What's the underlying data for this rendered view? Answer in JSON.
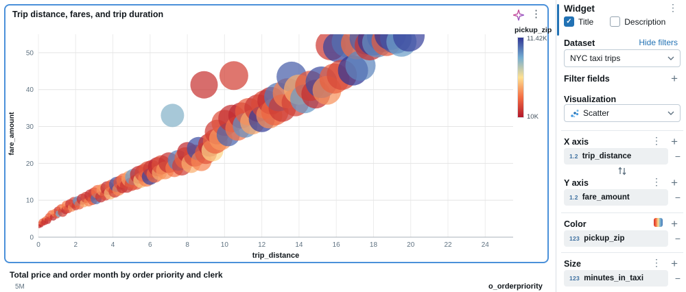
{
  "chart_widget": {
    "title": "Trip distance, fares, and trip duration",
    "legend": {
      "title": "pickup_zip",
      "max_label": "11.42K",
      "min_label": "10K"
    }
  },
  "bottom_widget": {
    "title": "Total price and order month by order priority and clerk",
    "y_tick": "5M",
    "legend_title": "o_orderpriority"
  },
  "panel": {
    "header": "Widget",
    "title_checkbox": "Title",
    "description_checkbox": "Description",
    "dataset_label": "Dataset",
    "hide_filters": "Hide filters",
    "dataset_value": "NYC taxi trips",
    "filter_fields_label": "Filter fields",
    "visualization_label": "Visualization",
    "visualization_value": "Scatter",
    "x_axis": {
      "label": "X axis",
      "field": "trip_distance",
      "type_icon": "1.2"
    },
    "y_axis": {
      "label": "Y axis",
      "field": "fare_amount",
      "type_icon": "1.2"
    },
    "color": {
      "label": "Color",
      "field": "pickup_zip",
      "type_icon": "123"
    },
    "size": {
      "label": "Size",
      "field": "minutes_in_taxi",
      "type_icon": "123"
    }
  },
  "icons": {
    "kebab": "⋮",
    "plus": "+",
    "minus": "−",
    "check": "✓"
  },
  "colors": {
    "accent": "#2272b4",
    "selection_border": "#4a90d9"
  },
  "chart_data": {
    "type": "scatter",
    "xlabel": "trip_distance",
    "ylabel": "fare_amount",
    "xlim": [
      0,
      25.5
    ],
    "ylim": [
      0,
      55
    ],
    "x_ticks": [
      0,
      2,
      4,
      6,
      8,
      10,
      12,
      14,
      16,
      18,
      20,
      22,
      24
    ],
    "y_ticks": [
      0,
      10,
      20,
      30,
      40,
      50
    ],
    "color_scale": {
      "field": "pickup_zip",
      "min": 10000,
      "max": 11420,
      "min_label": "10K",
      "max_label": "11.42K",
      "stops": [
        [
          0,
          "#b2182b"
        ],
        [
          0.25,
          "#f46d43"
        ],
        [
          0.5,
          "#fee090"
        ],
        [
          0.75,
          "#74add1"
        ],
        [
          1,
          "#313695"
        ]
      ]
    },
    "points": [
      [
        0.05,
        3.0,
        3,
        10100
      ],
      [
        0.1,
        3.6,
        4,
        10210
      ],
      [
        0.15,
        3.2,
        3,
        10060
      ],
      [
        0.2,
        4.1,
        5,
        10330
      ],
      [
        0.25,
        3.8,
        4,
        10150
      ],
      [
        0.3,
        4.6,
        4,
        10280
      ],
      [
        0.35,
        4.2,
        5,
        10120
      ],
      [
        0.4,
        5.0,
        4,
        10400
      ],
      [
        0.5,
        4.5,
        5,
        10090
      ],
      [
        0.55,
        5.6,
        5,
        10260
      ],
      [
        0.6,
        5.0,
        4,
        10180
      ],
      [
        0.7,
        6.2,
        6,
        10350
      ],
      [
        0.8,
        5.4,
        5,
        10070
      ],
      [
        0.9,
        6.6,
        6,
        10440
      ],
      [
        1.0,
        6.0,
        5,
        10230
      ],
      [
        1.05,
        7.2,
        6,
        10130
      ],
      [
        1.1,
        6.4,
        5,
        11050
      ],
      [
        1.2,
        7.8,
        6,
        10300
      ],
      [
        1.3,
        6.8,
        7,
        10170
      ],
      [
        1.35,
        8.1,
        5,
        10520
      ],
      [
        1.45,
        7.4,
        6,
        10080
      ],
      [
        1.5,
        8.6,
        7,
        10390
      ],
      [
        1.6,
        7.6,
        6,
        10240
      ],
      [
        1.7,
        9.0,
        7,
        10110
      ],
      [
        1.8,
        8.0,
        6,
        10460
      ],
      [
        1.9,
        9.4,
        8,
        10200
      ],
      [
        2.0,
        8.4,
        6,
        10140
      ],
      [
        2.1,
        9.8,
        7,
        11150
      ],
      [
        2.2,
        8.8,
        7,
        10320
      ],
      [
        2.35,
        10.3,
        8,
        10090
      ],
      [
        2.45,
        9.2,
        6,
        10550
      ],
      [
        2.55,
        10.8,
        8,
        10180
      ],
      [
        2.7,
        9.6,
        7,
        10420
      ],
      [
        2.8,
        11.3,
        9,
        10100
      ],
      [
        2.9,
        10.0,
        7,
        10270
      ],
      [
        3.0,
        11.8,
        9,
        10150
      ],
      [
        3.1,
        10.4,
        8,
        11250
      ],
      [
        3.2,
        12.3,
        10,
        10360
      ],
      [
        3.35,
        10.9,
        8,
        10120
      ],
      [
        3.45,
        12.8,
        9,
        10490
      ],
      [
        3.6,
        11.4,
        8,
        10210
      ],
      [
        3.7,
        13.3,
        10,
        10080
      ],
      [
        3.85,
        11.9,
        9,
        10580
      ],
      [
        3.95,
        13.8,
        10,
        10300
      ],
      [
        4.1,
        12.4,
        9,
        10160
      ],
      [
        4.2,
        14.3,
        11,
        11320
      ],
      [
        4.3,
        12.9,
        9,
        10440
      ],
      [
        4.4,
        14.8,
        10,
        10230
      ],
      [
        4.5,
        13.4,
        8,
        10100
      ],
      [
        4.6,
        15.3,
        11,
        10350
      ],
      [
        4.75,
        13.9,
        10,
        10130
      ],
      [
        4.9,
        15.8,
        12,
        10500
      ],
      [
        5.0,
        14.4,
        10,
        10200
      ],
      [
        5.1,
        16.3,
        12,
        11100
      ],
      [
        5.25,
        14.9,
        11,
        10280
      ],
      [
        5.4,
        16.9,
        13,
        10090
      ],
      [
        5.5,
        15.4,
        11,
        10620
      ],
      [
        5.65,
        17.4,
        13,
        10170
      ],
      [
        5.8,
        15.9,
        12,
        10410
      ],
      [
        5.9,
        18.0,
        14,
        10250
      ],
      [
        6.0,
        16.4,
        12,
        11380
      ],
      [
        6.1,
        18.5,
        13,
        10140
      ],
      [
        6.25,
        17.0,
        12,
        10330
      ],
      [
        6.4,
        19.1,
        14,
        10060
      ],
      [
        6.5,
        17.5,
        11,
        10540
      ],
      [
        6.6,
        19.6,
        14,
        10220
      ],
      [
        6.8,
        18.1,
        13,
        10470
      ],
      [
        7.0,
        20.2,
        15,
        10110
      ],
      [
        7.2,
        33.0,
        17,
        11020
      ],
      [
        7.3,
        18.7,
        13,
        10390
      ],
      [
        7.5,
        20.8,
        15,
        11200
      ],
      [
        7.7,
        19.3,
        14,
        10160
      ],
      [
        7.9,
        21.4,
        16,
        10300
      ],
      [
        8.0,
        23.0,
        15,
        10080
      ],
      [
        8.2,
        20.0,
        14,
        10560
      ],
      [
        8.4,
        22.1,
        16,
        10190
      ],
      [
        8.6,
        24.0,
        17,
        11340
      ],
      [
        8.75,
        20.7,
        15,
        10430
      ],
      [
        8.9,
        41.3,
        20,
        10120
      ],
      [
        9.0,
        22.8,
        16,
        10260
      ],
      [
        9.2,
        25.0,
        17,
        10090
      ],
      [
        9.35,
        23.5,
        16,
        10680
      ],
      [
        9.5,
        26.0,
        18,
        10310
      ],
      [
        9.6,
        28.5,
        18,
        10150
      ],
      [
        9.8,
        26.7,
        17,
        10490
      ],
      [
        10.0,
        31.0,
        19,
        10240
      ],
      [
        10.2,
        27.8,
        17,
        11280
      ],
      [
        10.4,
        32.2,
        20,
        10100
      ],
      [
        10.5,
        43.8,
        21,
        10170
      ],
      [
        10.7,
        29.5,
        18,
        10380
      ],
      [
        10.9,
        33.0,
        19,
        10070
      ],
      [
        11.1,
        30.3,
        18,
        11150
      ],
      [
        11.3,
        34.0,
        20,
        10290
      ],
      [
        11.5,
        31.2,
        18,
        10530
      ],
      [
        11.8,
        35.0,
        20,
        10130
      ],
      [
        12.0,
        32.0,
        19,
        11400
      ],
      [
        12.2,
        36.0,
        21,
        10210
      ],
      [
        12.4,
        33.0,
        19,
        10460
      ],
      [
        12.5,
        37.0,
        20,
        10090
      ],
      [
        12.7,
        34.0,
        20,
        10320
      ],
      [
        12.9,
        38.0,
        21,
        11220
      ],
      [
        13.1,
        35.0,
        20,
        10140
      ],
      [
        13.4,
        39.0,
        22,
        10410
      ],
      [
        13.6,
        43.5,
        22,
        11300
      ],
      [
        13.8,
        36.5,
        20,
        10180
      ],
      [
        14.0,
        40.0,
        22,
        10560
      ],
      [
        14.3,
        37.5,
        21,
        11120
      ],
      [
        14.6,
        41.0,
        22,
        10250
      ],
      [
        14.9,
        38.8,
        21,
        10090
      ],
      [
        15.2,
        42.0,
        23,
        11350
      ],
      [
        15.5,
        39.8,
        21,
        10470
      ],
      [
        15.7,
        52.0,
        22,
        10150
      ],
      [
        15.9,
        43.0,
        22,
        10300
      ],
      [
        16.1,
        51.5,
        22,
        11380
      ],
      [
        16.3,
        44.0,
        22,
        10200
      ],
      [
        16.6,
        53.0,
        23,
        11240
      ],
      [
        16.9,
        45.2,
        22,
        11420
      ],
      [
        17.1,
        52.5,
        23,
        10350
      ],
      [
        17.3,
        46.5,
        22,
        11180
      ],
      [
        17.6,
        54.0,
        24,
        11300
      ],
      [
        17.8,
        52.0,
        22,
        10120
      ],
      [
        18.0,
        53.5,
        23,
        11400
      ],
      [
        18.2,
        52.8,
        22,
        11150
      ],
      [
        18.5,
        54.5,
        23,
        11260
      ],
      [
        18.7,
        53.2,
        22,
        10280
      ],
      [
        18.9,
        55.0,
        23,
        11420
      ],
      [
        19.2,
        54.0,
        23,
        11320
      ],
      [
        19.5,
        53.0,
        22,
        11100
      ],
      [
        19.9,
        54.6,
        23,
        11380
      ]
    ]
  }
}
